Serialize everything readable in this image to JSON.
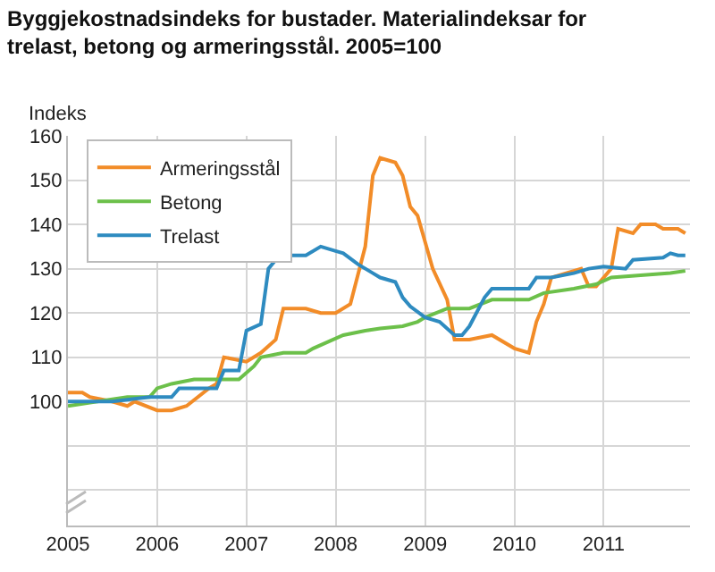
{
  "chart_data": {
    "type": "line",
    "title": "Byggjekostnadsindeks for bustader. Materialindeksar for trelast, betong og armeringsstål. 2005=100",
    "ylabel": "Indeks",
    "series": [
      {
        "name": "Armeringsstål",
        "color": "#f28c28",
        "x": [
          "2005-01",
          "2005-03",
          "2005-04",
          "2005-07",
          "2005-09",
          "2005-10",
          "2006-01",
          "2006-03",
          "2006-05",
          "2006-08",
          "2006-09",
          "2006-10",
          "2007-01",
          "2007-03",
          "2007-05",
          "2007-06",
          "2007-09",
          "2007-11",
          "2008-01",
          "2008-03",
          "2008-05",
          "2008-06",
          "2008-07",
          "2008-09",
          "2008-10",
          "2008-11",
          "2008-12",
          "2009-02",
          "2009-04",
          "2009-05",
          "2009-07",
          "2009-10",
          "2010-01",
          "2010-03",
          "2010-04",
          "2010-05",
          "2010-06",
          "2010-08",
          "2010-10",
          "2010-11",
          "2010-12",
          "2011-02",
          "2011-03",
          "2011-05",
          "2011-06",
          "2011-08",
          "2011-09",
          "2011-11",
          "2011-12"
        ],
        "values": [
          102,
          102,
          101,
          100,
          99,
          100,
          98,
          98,
          99,
          103,
          104,
          110,
          109,
          111,
          114,
          121,
          121,
          120,
          120,
          122,
          135,
          151,
          155,
          154,
          151,
          144,
          142,
          130,
          123,
          114,
          114,
          115,
          112,
          111,
          118,
          122,
          128,
          129,
          130,
          126,
          126,
          130,
          139,
          138,
          140,
          140,
          139,
          139,
          138
        ]
      },
      {
        "name": "Betong",
        "color": "#6cc04a",
        "x": [
          "2005-01",
          "2005-05",
          "2005-09",
          "2005-12",
          "2006-01",
          "2006-03",
          "2006-06",
          "2006-08",
          "2006-12",
          "2007-02",
          "2007-03",
          "2007-06",
          "2007-09",
          "2007-10",
          "2008-02",
          "2008-05",
          "2008-07",
          "2008-10",
          "2008-12",
          "2009-01",
          "2009-04",
          "2009-07",
          "2009-10",
          "2010-01",
          "2010-03",
          "2010-05",
          "2010-09",
          "2010-12",
          "2011-02",
          "2011-06",
          "2011-10",
          "2011-12"
        ],
        "values": [
          99,
          100,
          101,
          101,
          103,
          104,
          105,
          105,
          105,
          108,
          110,
          111,
          111,
          112,
          115,
          116,
          116.5,
          117,
          118,
          119,
          121,
          121,
          123,
          123,
          123,
          124.5,
          125.5,
          126.5,
          128,
          128.5,
          129,
          129.5
        ]
      },
      {
        "name": "Trelast",
        "color": "#2e8bc0",
        "x": [
          "2005-01",
          "2005-07",
          "2005-12",
          "2006-03",
          "2006-04",
          "2006-09",
          "2006-10",
          "2006-12",
          "2007-01",
          "2007-03",
          "2007-04",
          "2007-05",
          "2007-07",
          "2007-09",
          "2007-11",
          "2008-01",
          "2008-02",
          "2008-04",
          "2008-06",
          "2008-07",
          "2008-09",
          "2008-10",
          "2008-11",
          "2009-01",
          "2009-03",
          "2009-05",
          "2009-06",
          "2009-07",
          "2009-09",
          "2009-10",
          "2010-01",
          "2010-03",
          "2010-04",
          "2010-06",
          "2010-09",
          "2010-11",
          "2011-01",
          "2011-04",
          "2011-05",
          "2011-09",
          "2011-10",
          "2011-11",
          "2011-12"
        ],
        "values": [
          100,
          100,
          101,
          101,
          103,
          103,
          107,
          107,
          116,
          117.5,
          130,
          132,
          133,
          133,
          135,
          134,
          133.5,
          131,
          129,
          128,
          127,
          123.5,
          121.5,
          119,
          118,
          115,
          115,
          117,
          123.5,
          125.5,
          125.5,
          125.5,
          128,
          128,
          129,
          130,
          130.5,
          130,
          132,
          132.5,
          133.5,
          133,
          133
        ]
      }
    ],
    "xlim": [
      "2005-01-01",
      "2011-12-20"
    ],
    "xticks": [
      {
        "value": "2005-01-01",
        "label": "2005"
      },
      {
        "value": "2006-01-01",
        "label": "2006"
      },
      {
        "value": "2007-01-01",
        "label": "2007"
      },
      {
        "value": "2008-01-01",
        "label": "2008"
      },
      {
        "value": "2009-01-01",
        "label": "2009"
      },
      {
        "value": "2010-01-01",
        "label": "2010"
      },
      {
        "value": "2011-01-01",
        "label": "2011"
      }
    ],
    "ylim": [
      72,
      160
    ],
    "yticks": [
      {
        "value": 80,
        "label": null
      },
      {
        "value": 90,
        "label": null
      },
      100,
      110,
      120,
      130,
      140,
      150,
      160
    ],
    "grid": true,
    "legend": "top left",
    "line_style": "solid",
    "marker": "none"
  }
}
